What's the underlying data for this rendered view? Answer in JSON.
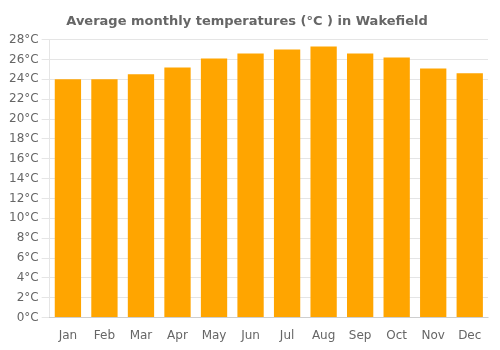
{
  "chart_data": {
    "type": "bar",
    "title": "Average monthly temperatures (°C ) in Wakefield",
    "categories": [
      "Jan",
      "Feb",
      "Mar",
      "Apr",
      "May",
      "Jun",
      "Jul",
      "Aug",
      "Sep",
      "Oct",
      "Nov",
      "Dec"
    ],
    "values": [
      24.0,
      24.0,
      24.5,
      25.2,
      26.1,
      26.6,
      27.0,
      27.3,
      26.6,
      26.2,
      25.1,
      24.6
    ],
    "color": "#FFA500",
    "ylim": [
      0,
      28
    ],
    "yticks": [
      {
        "value": 0,
        "label": "0°C"
      },
      {
        "value": 2,
        "label": "2°C"
      },
      {
        "value": 4,
        "label": "4°C"
      },
      {
        "value": 6,
        "label": "6°C"
      },
      {
        "value": 8,
        "label": "8°C"
      },
      {
        "value": 10,
        "label": "10°C"
      },
      {
        "value": 12,
        "label": "12°C"
      },
      {
        "value": 14,
        "label": "14°C"
      },
      {
        "value": 16,
        "label": "16°C"
      },
      {
        "value": 18,
        "label": "18°C"
      },
      {
        "value": 20,
        "label": "20°C"
      },
      {
        "value": 22,
        "label": "22°C"
      },
      {
        "value": 24,
        "label": "24°C"
      },
      {
        "value": 26,
        "label": "26°C"
      },
      {
        "value": 28,
        "label": "28°C"
      }
    ],
    "grid": true
  }
}
